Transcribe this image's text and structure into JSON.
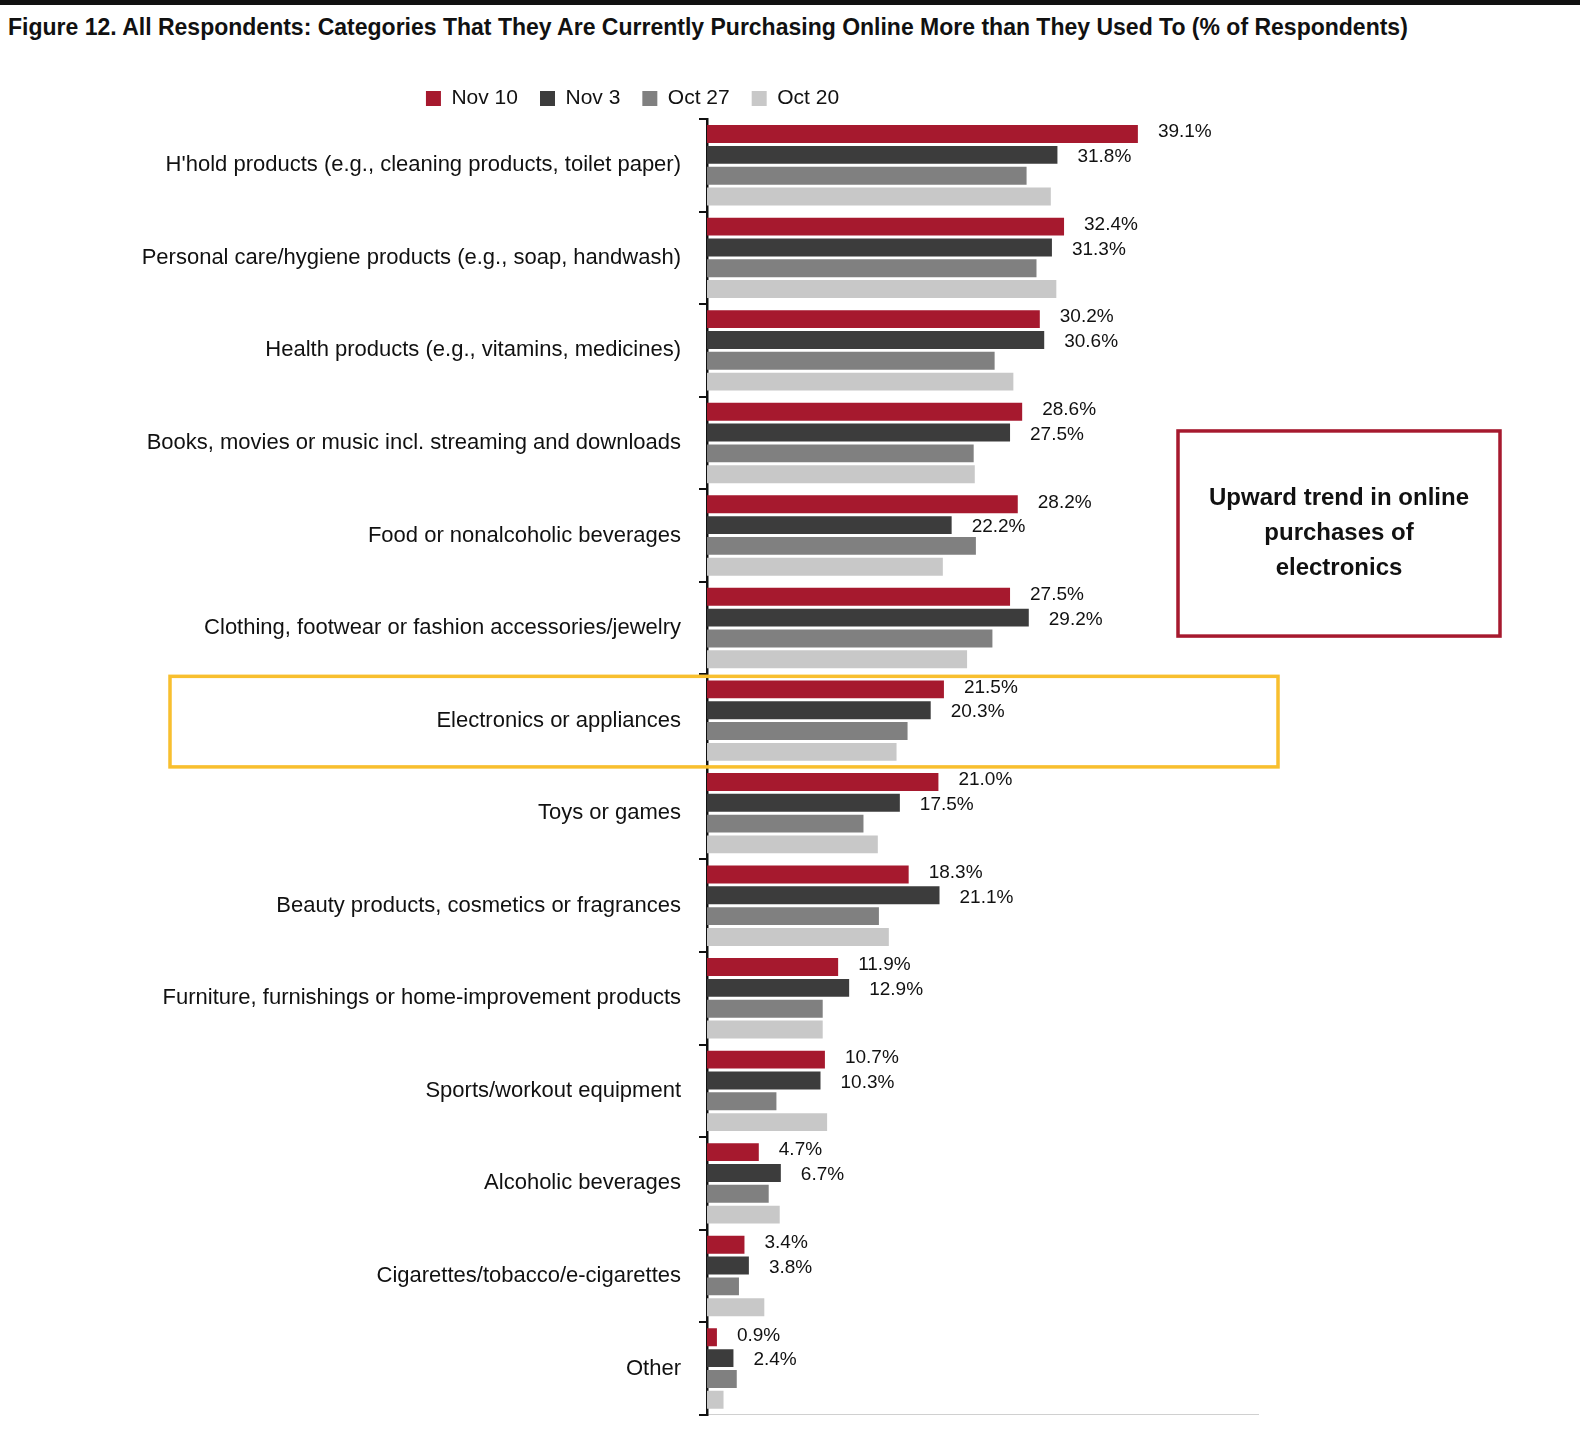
{
  "chart_data": {
    "type": "bar",
    "title": "Figure 12. All Respondents: Categories That They Are Currently Purchasing Online More than They Used To (% of Respondents)",
    "orientation": "horizontal",
    "legend": "top",
    "grid": false,
    "tick_labels": "y",
    "xlim": [
      0,
      50
    ],
    "categories": [
      "H'hold products (e.g., cleaning products, toilet paper)",
      "Personal care/hygiene products (e.g., soap, handwash)",
      "Health products (e.g., vitamins, medicines)",
      "Books, movies or music incl. streaming and downloads",
      "Food or nonalcoholic beverages",
      "Clothing, footwear or fashion accessories/jewelry",
      "Electronics or appliances",
      "Toys or games",
      "Beauty products, cosmetics or fragrances",
      "Furniture, furnishings or home-improvement products",
      "Sports/workout equipment",
      "Alcoholic beverages",
      "Cigarettes/tobacco/e-cigarettes",
      "Other"
    ],
    "series": [
      {
        "name": "Nov 10",
        "color": "#a6192e",
        "data_labels": true,
        "values": [
          39.1,
          32.4,
          30.2,
          28.6,
          28.2,
          27.5,
          21.5,
          21.0,
          18.3,
          11.9,
          10.7,
          4.7,
          3.4,
          0.9
        ],
        "value_labels": [
          "39.1%",
          "32.4%",
          "30.2%",
          "28.6%",
          "28.2%",
          "27.5%",
          "21.5%",
          "21.0%",
          "18.3%",
          "11.9%",
          "10.7%",
          "4.7%",
          "3.4%",
          "0.9%"
        ]
      },
      {
        "name": "Nov 3",
        "color": "#3c3c3c",
        "data_labels": true,
        "values": [
          31.8,
          31.3,
          30.6,
          27.5,
          22.2,
          29.2,
          20.3,
          17.5,
          21.1,
          12.9,
          10.3,
          6.7,
          3.8,
          2.4
        ],
        "value_labels": [
          "31.8%",
          "31.3%",
          "30.6%",
          "27.5%",
          "22.2%",
          "29.2%",
          "20.3%",
          "17.5%",
          "21.1%",
          "12.9%",
          "10.3%",
          "6.7%",
          "3.8%",
          "2.4%"
        ]
      },
      {
        "name": "Oct 27",
        "color": "#808080",
        "data_labels": false,
        "values": [
          29.0,
          29.9,
          26.1,
          24.2,
          24.4,
          25.9,
          18.2,
          14.2,
          15.6,
          10.5,
          6.3,
          5.6,
          2.9,
          2.7
        ]
      },
      {
        "name": "Oct 20",
        "color": "#c8c8c8",
        "data_labels": false,
        "values": [
          31.2,
          31.7,
          27.8,
          24.3,
          21.4,
          23.6,
          17.2,
          15.5,
          16.5,
          10.5,
          10.9,
          6.6,
          5.2,
          1.5
        ]
      }
    ],
    "annotations": [
      {
        "text": "Upward trend in online purchases of electronics",
        "category": "Electronics or appliances"
      }
    ]
  }
}
